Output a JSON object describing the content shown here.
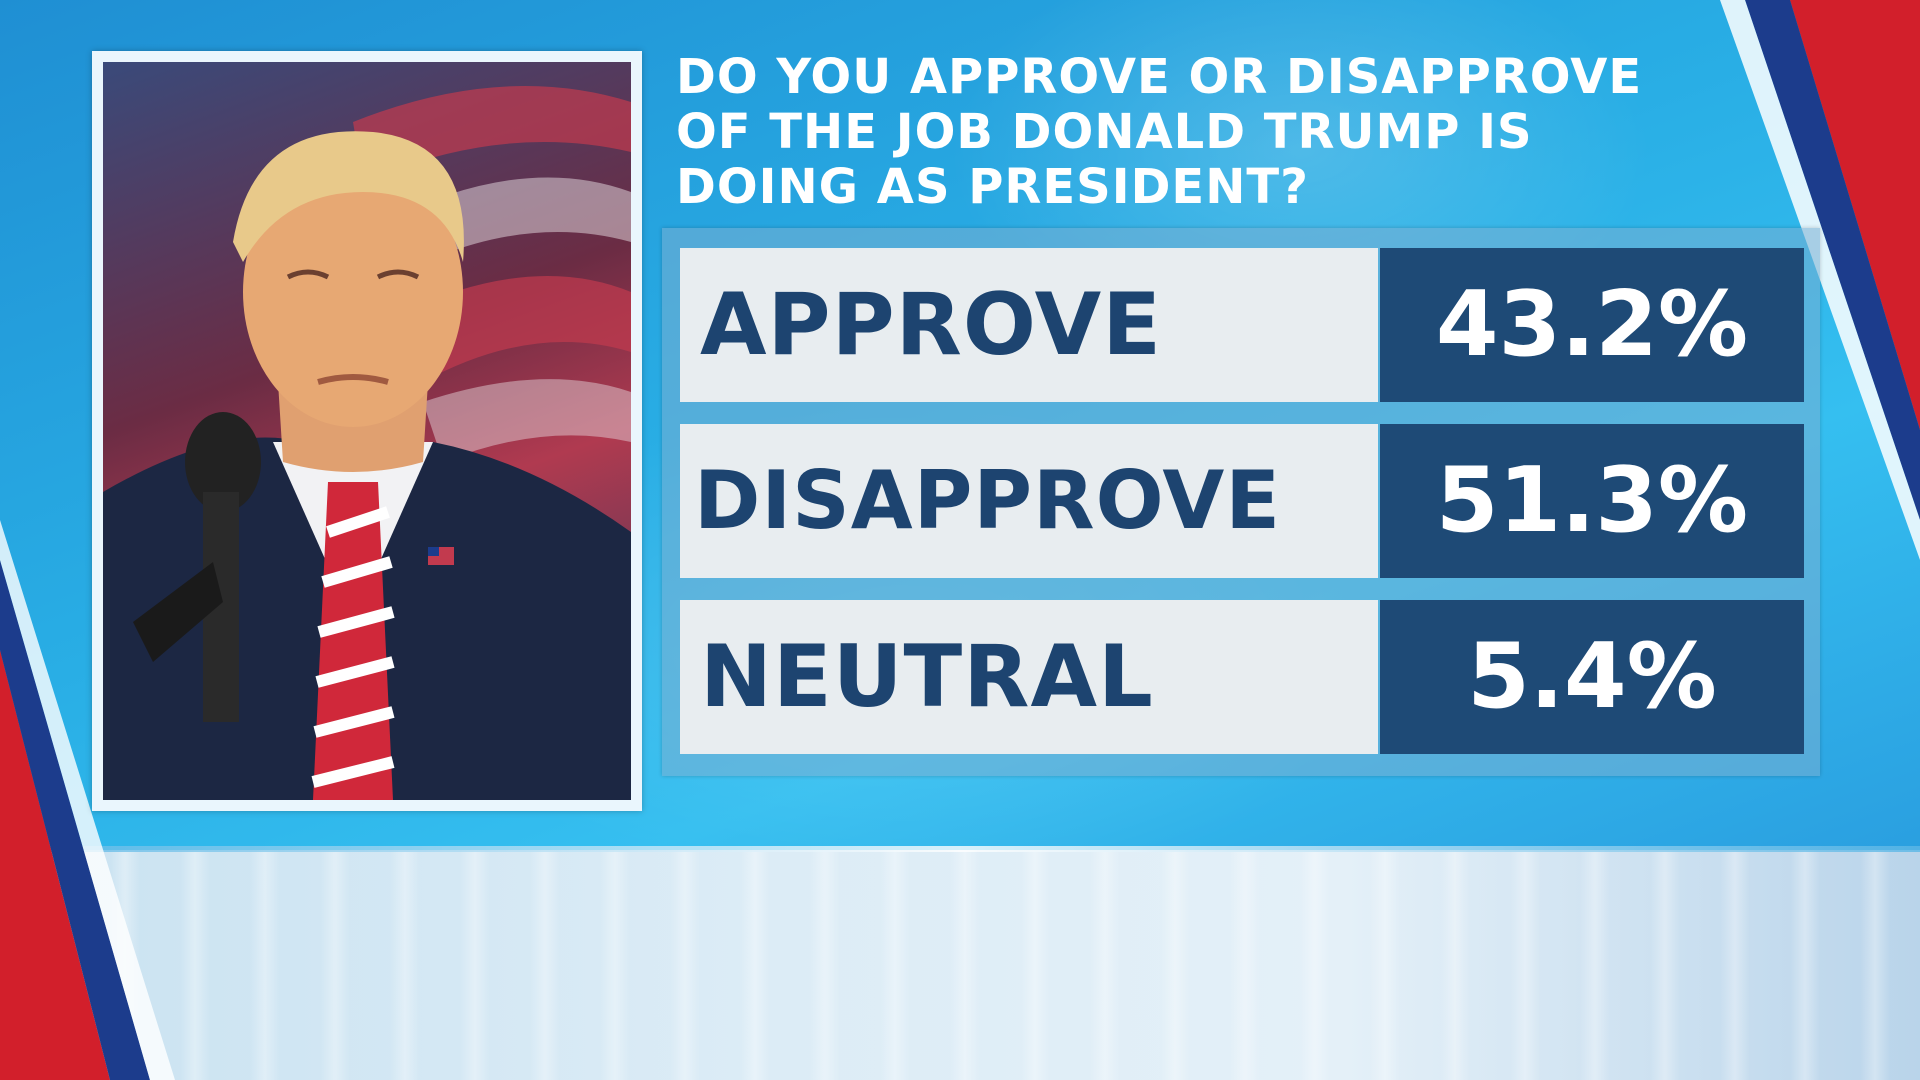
{
  "colors": {
    "label_bg": "#e8edf0",
    "label_text": "#1d4470",
    "value_bg": "#1e4a76",
    "value_text": "#ffffff",
    "background": "#2aa5dc",
    "accent_red": "#d21f2b",
    "accent_blue": "#1c3c8c"
  },
  "question": {
    "line1": "DO YOU APPROVE OR DISAPPROVE",
    "line2": "OF THE JOB DONALD TRUMP IS",
    "line3": "DOING AS PRESIDENT?"
  },
  "results": [
    {
      "label": "APPROVE",
      "value": "43.2%"
    },
    {
      "label": "DISAPPROVE",
      "value": "51.3%"
    },
    {
      "label": "NEUTRAL",
      "value": "5.4%"
    }
  ],
  "photo": {
    "subject_icon": "portrait-photo"
  }
}
